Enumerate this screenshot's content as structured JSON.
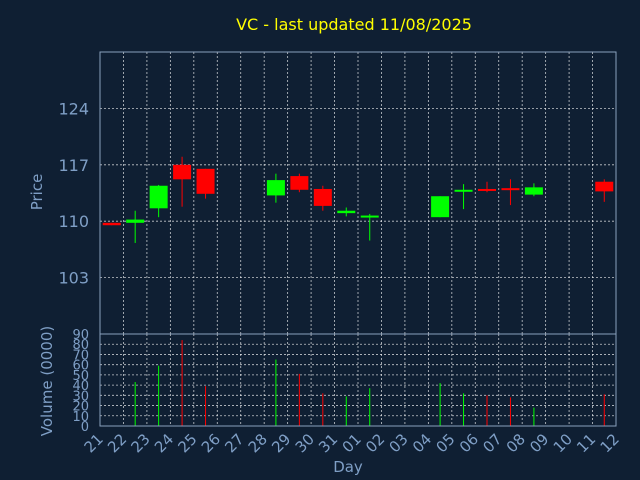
{
  "chart_data": {
    "type": "candlestick",
    "title": "VC - last updated 11/08/2025",
    "ylabel": "Price",
    "xlabel": "Day",
    "volume_label": "Volume (0000)",
    "ylim": [
      96,
      131
    ],
    "yticks": [
      103,
      110,
      117,
      124
    ],
    "volume_ylim": [
      0,
      90
    ],
    "volume_ticks": [
      0,
      10,
      20,
      30,
      40,
      50,
      60,
      70,
      80,
      90
    ],
    "x_ticks": [
      "21",
      "22",
      "23",
      "24",
      "25",
      "26",
      "27",
      "28",
      "29",
      "30",
      "31",
      "01",
      "02",
      "03",
      "04",
      "05",
      "06",
      "07",
      "08",
      "09",
      "10",
      "11",
      "12"
    ],
    "colors": {
      "up": "#00ff00",
      "down": "#ff0000",
      "background": "#0f1f33",
      "text": "#7f9fc6",
      "title": "#ffff00"
    },
    "grid": true,
    "candles": [
      {
        "day": "21",
        "open": 109.8,
        "high": 109.8,
        "low": 109.5,
        "close": 109.5,
        "volume": 0
      },
      {
        "day": "22",
        "open": 109.8,
        "high": 111.3,
        "low": 107.3,
        "close": 110.2,
        "volume": 43
      },
      {
        "day": "23",
        "open": 111.6,
        "high": 114.5,
        "low": 110.5,
        "close": 114.4,
        "volume": 59
      },
      {
        "day": "24",
        "open": 117.0,
        "high": 118.0,
        "low": 111.8,
        "close": 115.2,
        "volume": 84
      },
      {
        "day": "25",
        "open": 116.5,
        "high": 116.5,
        "low": 112.8,
        "close": 113.4,
        "volume": 39
      },
      {
        "day": "28",
        "open": 113.2,
        "high": 115.9,
        "low": 112.3,
        "close": 115.1,
        "volume": 65
      },
      {
        "day": "29",
        "open": 115.6,
        "high": 115.9,
        "low": 113.6,
        "close": 113.9,
        "volume": 51
      },
      {
        "day": "30",
        "open": 114.0,
        "high": 114.4,
        "low": 111.3,
        "close": 111.9,
        "volume": 32
      },
      {
        "day": "31",
        "open": 111.0,
        "high": 111.7,
        "low": 110.6,
        "close": 111.3,
        "volume": 29
      },
      {
        "day": "01",
        "open": 110.6,
        "high": 110.9,
        "low": 107.6,
        "close": 110.7,
        "volume": 37
      },
      {
        "day": "04",
        "open": 110.5,
        "high": 113.1,
        "low": 110.5,
        "close": 113.1,
        "volume": 42
      },
      {
        "day": "05",
        "open": 113.8,
        "high": 114.6,
        "low": 111.5,
        "close": 113.9,
        "volume": 32
      },
      {
        "day": "06",
        "open": 114.0,
        "high": 114.9,
        "low": 113.6,
        "close": 113.8,
        "volume": 30
      },
      {
        "day": "07",
        "open": 114.1,
        "high": 115.2,
        "low": 112.0,
        "close": 113.9,
        "volume": 28
      },
      {
        "day": "08",
        "open": 113.3,
        "high": 114.7,
        "low": 113.1,
        "close": 114.2,
        "volume": 18
      },
      {
        "day": "11",
        "open": 114.9,
        "high": 115.2,
        "low": 112.4,
        "close": 113.7,
        "volume": 31
      }
    ]
  }
}
